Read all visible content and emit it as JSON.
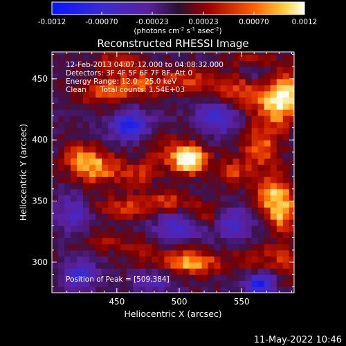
{
  "chart_data": {
    "type": "heatmap",
    "title": "Reconstructed RHESSI Image",
    "xlabel": "Heliocentric X (arcsec)",
    "ylabel": "Heliocentric Y (arcsec)",
    "xlim": [
      398,
      592
    ],
    "ylim": [
      275,
      472
    ],
    "xticks": [
      450,
      500,
      550
    ],
    "yticks": [
      300,
      350,
      400,
      450
    ],
    "grid": false,
    "colorbar": {
      "ticks": [
        "-0.0012",
        "-0.00070",
        "-0.00023",
        "0.00023",
        "0.00070",
        "0.0012"
      ],
      "range": [
        -0.0012,
        0.0012
      ],
      "unit_text": "(photons cm",
      "unit_text_a": "-2",
      "unit_text_b": " s",
      "unit_text_c": "-1",
      "unit_text_d": " asec",
      "unit_text_e": "-2",
      "unit_text_f": ")"
    },
    "annotations": {
      "time_range": "12-Feb-2013 04:07:12.000 to 04:08:32.000",
      "detectors": "Detectors: 3F 4F 5F 6F 7F 8F, Att 0",
      "energy_range": "Energy Range: 12.0 - 25.0 keV",
      "algorithm": "Clean",
      "total_counts": "Total counts: 1.54E+03",
      "peak_position": "Position of Peak = [509,384]"
    },
    "peak": [
      509,
      384
    ],
    "blobs": [
      {
        "x": 509,
        "y": 384,
        "amp": 1.05,
        "sx": 9,
        "sy": 8
      },
      {
        "x": 490,
        "y": 390,
        "amp": 0.35,
        "sx": 14,
        "sy": 10
      },
      {
        "x": 440,
        "y": 440,
        "amp": 0.55,
        "sx": 16,
        "sy": 8
      },
      {
        "x": 470,
        "y": 447,
        "amp": 0.5,
        "sx": 14,
        "sy": 8
      },
      {
        "x": 505,
        "y": 450,
        "amp": 0.45,
        "sx": 12,
        "sy": 7
      },
      {
        "x": 545,
        "y": 440,
        "amp": 0.55,
        "sx": 18,
        "sy": 10
      },
      {
        "x": 575,
        "y": 425,
        "amp": 0.6,
        "sx": 12,
        "sy": 14
      },
      {
        "x": 586,
        "y": 440,
        "amp": 0.75,
        "sx": 8,
        "sy": 12
      },
      {
        "x": 565,
        "y": 395,
        "amp": 0.55,
        "sx": 10,
        "sy": 10
      },
      {
        "x": 545,
        "y": 375,
        "amp": 0.45,
        "sx": 12,
        "sy": 8
      },
      {
        "x": 420,
        "y": 385,
        "amp": 0.45,
        "sx": 10,
        "sy": 10
      },
      {
        "x": 435,
        "y": 378,
        "amp": 0.6,
        "sx": 12,
        "sy": 10
      },
      {
        "x": 465,
        "y": 372,
        "amp": 0.4,
        "sx": 12,
        "sy": 8
      },
      {
        "x": 455,
        "y": 345,
        "amp": 0.45,
        "sx": 16,
        "sy": 7
      },
      {
        "x": 490,
        "y": 350,
        "amp": 0.5,
        "sx": 12,
        "sy": 6
      },
      {
        "x": 520,
        "y": 340,
        "amp": 0.35,
        "sx": 10,
        "sy": 8
      },
      {
        "x": 575,
        "y": 355,
        "amp": 0.7,
        "sx": 10,
        "sy": 14
      },
      {
        "x": 585,
        "y": 340,
        "amp": 0.55,
        "sx": 8,
        "sy": 12
      },
      {
        "x": 440,
        "y": 318,
        "amp": 0.35,
        "sx": 12,
        "sy": 6
      },
      {
        "x": 510,
        "y": 300,
        "amp": 0.75,
        "sx": 16,
        "sy": 7
      },
      {
        "x": 470,
        "y": 310,
        "amp": 0.3,
        "sx": 12,
        "sy": 8
      },
      {
        "x": 560,
        "y": 305,
        "amp": 0.35,
        "sx": 12,
        "sy": 8
      },
      {
        "x": 585,
        "y": 300,
        "amp": 0.45,
        "sx": 8,
        "sy": 10
      },
      {
        "x": 450,
        "y": 465,
        "amp": 0.4,
        "sx": 14,
        "sy": 6
      },
      {
        "x": 560,
        "y": 465,
        "amp": 0.35,
        "sx": 12,
        "sy": 5
      },
      {
        "x": 460,
        "y": 412,
        "amp": -0.75,
        "sx": 11,
        "sy": 9
      },
      {
        "x": 530,
        "y": 420,
        "amp": -0.6,
        "sx": 12,
        "sy": 10
      },
      {
        "x": 500,
        "y": 330,
        "amp": -0.5,
        "sx": 14,
        "sy": 8
      },
      {
        "x": 565,
        "y": 282,
        "amp": -0.85,
        "sx": 8,
        "sy": 6
      },
      {
        "x": 420,
        "y": 290,
        "amp": -0.55,
        "sx": 10,
        "sy": 8
      },
      {
        "x": 545,
        "y": 330,
        "amp": -0.5,
        "sx": 10,
        "sy": 10
      },
      {
        "x": 415,
        "y": 340,
        "amp": -0.45,
        "sx": 10,
        "sy": 10
      },
      {
        "x": 560,
        "y": 455,
        "amp": -0.35,
        "sx": 8,
        "sy": 6
      },
      {
        "x": 480,
        "y": 285,
        "amp": -0.35,
        "sx": 12,
        "sy": 6
      }
    ]
  },
  "footer": {
    "timestamp": "11-May-2022 10:46"
  }
}
